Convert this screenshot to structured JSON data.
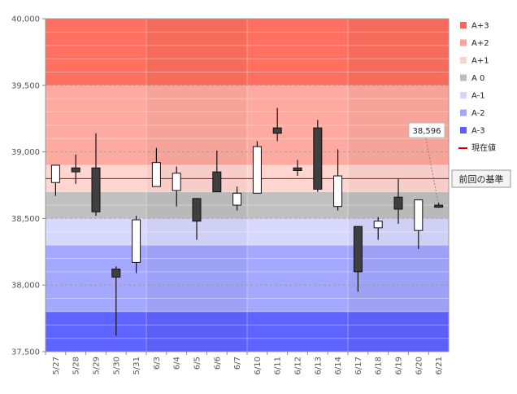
{
  "chart_data": {
    "type": "candlestick",
    "categories": [
      "5/27",
      "5/28",
      "5/29",
      "5/30",
      "5/31",
      "6/3",
      "6/4",
      "6/5",
      "6/6",
      "6/7",
      "6/10",
      "6/11",
      "6/12",
      "6/13",
      "6/14",
      "6/17",
      "6/18",
      "6/19",
      "6/20",
      "6/21"
    ],
    "ohlc": [
      {
        "open": 38770,
        "high": 38900,
        "low": 38670,
        "close": 38900
      },
      {
        "open": 38880,
        "high": 38980,
        "low": 38760,
        "close": 38850
      },
      {
        "open": 38880,
        "high": 39140,
        "low": 38520,
        "close": 38550
      },
      {
        "open": 38120,
        "high": 38140,
        "low": 37620,
        "close": 38060
      },
      {
        "open": 38170,
        "high": 38520,
        "low": 38090,
        "close": 38490
      },
      {
        "open": 38740,
        "high": 39030,
        "low": 38740,
        "close": 38920
      },
      {
        "open": 38710,
        "high": 38890,
        "low": 38590,
        "close": 38840
      },
      {
        "open": 38650,
        "high": 38650,
        "low": 38340,
        "close": 38480
      },
      {
        "open": 38850,
        "high": 39010,
        "low": 38700,
        "close": 38700
      },
      {
        "open": 38600,
        "high": 38740,
        "low": 38560,
        "close": 38690
      },
      {
        "open": 38690,
        "high": 39080,
        "low": 38690,
        "close": 39040
      },
      {
        "open": 39180,
        "high": 39330,
        "low": 39080,
        "close": 39140
      },
      {
        "open": 38880,
        "high": 38940,
        "low": 38820,
        "close": 38860
      },
      {
        "open": 39180,
        "high": 39240,
        "low": 38700,
        "close": 38720
      },
      {
        "open": 38590,
        "high": 39020,
        "low": 38560,
        "close": 38820
      },
      {
        "open": 38440,
        "high": 38440,
        "low": 37950,
        "close": 38100
      },
      {
        "open": 38430,
        "high": 38510,
        "low": 38340,
        "close": 38480
      },
      {
        "open": 38660,
        "high": 38800,
        "low": 38460,
        "close": 38570
      },
      {
        "open": 38410,
        "high": 38640,
        "low": 38270,
        "close": 38640
      },
      {
        "open": 38600,
        "high": 38620,
        "low": 38580,
        "close": 38596
      }
    ],
    "ylim": [
      37500,
      40000
    ],
    "y_ticks": [
      37500,
      38000,
      38500,
      39000,
      39500,
      40000
    ],
    "y_tick_labels": [
      "37,500",
      "38,000",
      "38,500",
      "39,000",
      "39,500",
      "40,000"
    ],
    "bands": [
      {
        "label": "A+3",
        "from": 39500,
        "to": 40000,
        "color": "#ff7060",
        "legend_color": "#f26a5e"
      },
      {
        "label": "A+2",
        "from": 38900,
        "to": 39500,
        "color": "#ffaaa0",
        "legend_color": "#f7a39a"
      },
      {
        "label": "A+1",
        "from": 38700,
        "to": 38900,
        "color": "#ffd5d0",
        "legend_color": "#fad2cc"
      },
      {
        "label": "A 0",
        "from": 38500,
        "to": 38700,
        "color": "#c0c0c0",
        "legend_color": "#bdbdbd"
      },
      {
        "label": "A-1",
        "from": 38300,
        "to": 38500,
        "color": "#d8d8ff",
        "legend_color": "#d6d6fa"
      },
      {
        "label": "A-2",
        "from": 37800,
        "to": 38300,
        "color": "#a4a8ff",
        "legend_color": "#a3a6f6"
      },
      {
        "label": "A-3",
        "from": 37500,
        "to": 37800,
        "color": "#6064ff",
        "legend_color": "#5f62f0"
      }
    ],
    "reference_line": {
      "value": 38800,
      "color": "#cc0000"
    },
    "legend": [
      {
        "label": "A+3",
        "kind": "swatch",
        "color": "#f26a5e"
      },
      {
        "label": "A+2",
        "kind": "swatch",
        "color": "#f7a39a"
      },
      {
        "label": "A+1",
        "kind": "swatch",
        "color": "#fad2cc"
      },
      {
        "label": "A 0",
        "kind": "swatch",
        "color": "#bdbdbd"
      },
      {
        "label": "A-1",
        "kind": "swatch",
        "color": "#d6d6fa"
      },
      {
        "label": "A-2",
        "kind": "swatch",
        "color": "#a3a6f6"
      },
      {
        "label": "A-3",
        "kind": "swatch",
        "color": "#5f62f0"
      },
      {
        "label": "現在値",
        "kind": "line",
        "color": "#cc0000"
      }
    ],
    "legend_position": "right",
    "callout_value": "38,596",
    "reference_label": "前回の基準",
    "grid": true
  }
}
